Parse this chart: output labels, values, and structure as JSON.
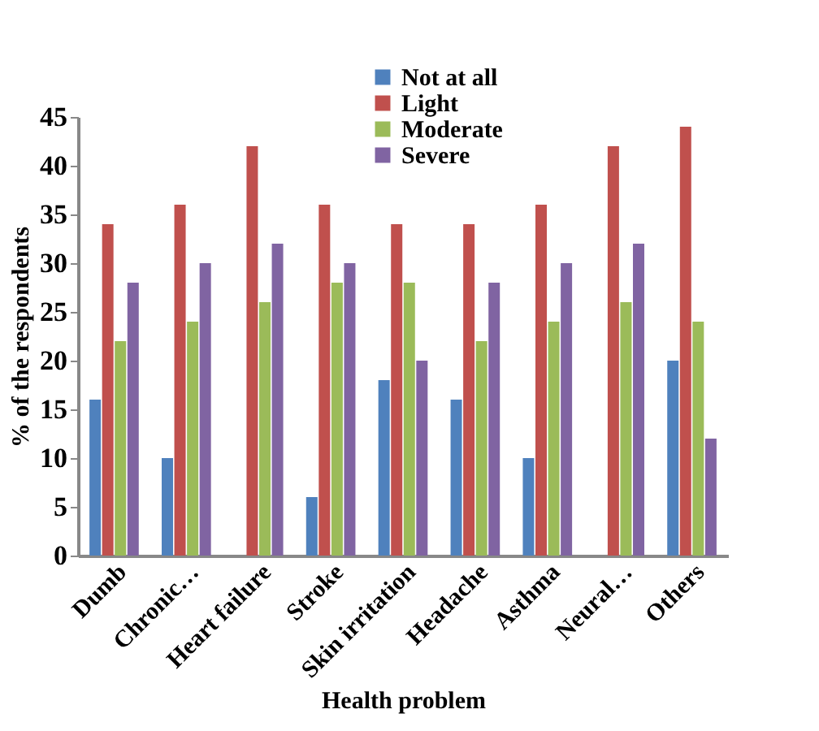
{
  "chart_data": {
    "type": "bar",
    "xlabel": "Health problem",
    "ylabel": "% of the respondents",
    "categories": [
      "Dumb",
      "Chronic…",
      "Heart failure",
      "Stroke",
      "Skin irritation",
      "Headache",
      "Asthma",
      "Neural…",
      "Others"
    ],
    "series": [
      {
        "name": "Not at all",
        "color": "#4f81bd",
        "values": [
          16,
          10,
          0,
          6,
          18,
          16,
          10,
          0,
          20
        ]
      },
      {
        "name": "Light",
        "color": "#c0504d",
        "values": [
          34,
          36,
          42,
          36,
          34,
          34,
          36,
          42,
          44
        ]
      },
      {
        "name": "Moderate",
        "color": "#9bbb59",
        "values": [
          22,
          24,
          26,
          28,
          28,
          22,
          24,
          26,
          24
        ]
      },
      {
        "name": "Severe",
        "color": "#8064a2",
        "values": [
          28,
          30,
          32,
          30,
          20,
          28,
          30,
          32,
          12
        ]
      }
    ],
    "ylim": [
      0,
      45
    ],
    "yticks": [
      0,
      5,
      10,
      15,
      20,
      25,
      30,
      35,
      40,
      45
    ],
    "grid": false,
    "legend": "top"
  }
}
